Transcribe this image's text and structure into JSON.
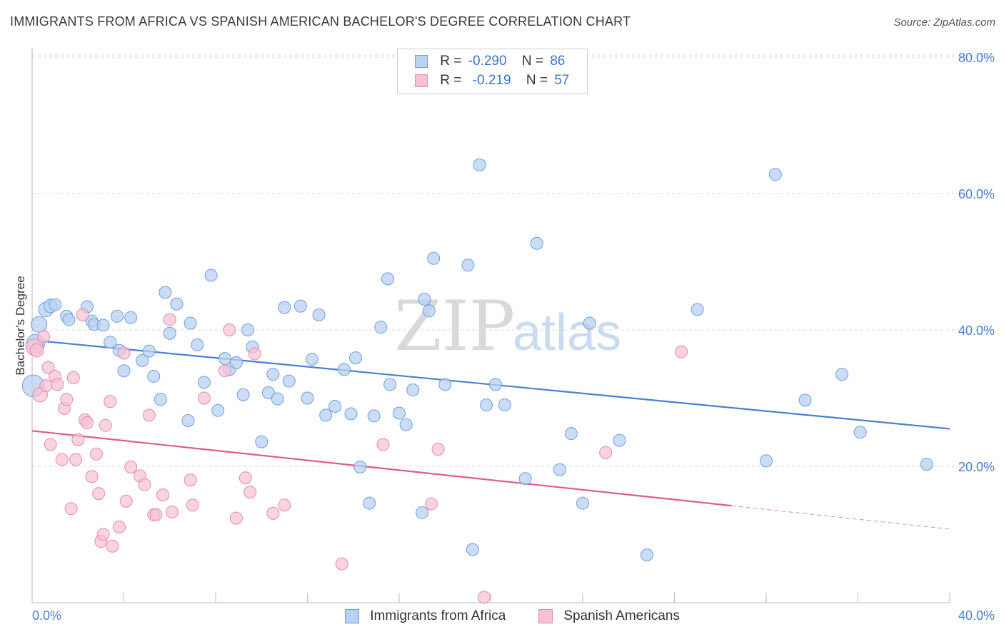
{
  "title": "IMMIGRANTS FROM AFRICA VS SPANISH AMERICAN BACHELOR'S DEGREE CORRELATION CHART",
  "source": "Source: ZipAtlas.com",
  "watermark": {
    "zip": "ZIP",
    "atlas": "atlas"
  },
  "legend": {
    "r_label": "R =",
    "n_label": "N =",
    "items": [
      {
        "name": "Immigrants from Africa",
        "r": "-0.290",
        "n": "86",
        "color": "#b9d2f2",
        "edge": "#6f9fe0"
      },
      {
        "name": "Spanish Americans",
        "r": "-0.219",
        "n": "57",
        "color": "#f6c2d3",
        "edge": "#e58aa9"
      }
    ]
  },
  "chart_data": {
    "type": "scatter",
    "title": "IMMIGRANTS FROM AFRICA VS SPANISH AMERICAN BACHELOR'S DEGREE CORRELATION CHART",
    "xlabel": "",
    "ylabel": "Bachelor's Degree",
    "xlim": [
      0,
      40
    ],
    "ylim": [
      0,
      80
    ],
    "x_tick_labels": [
      "0.0%",
      "40.0%"
    ],
    "y_ticks": [
      20,
      40,
      60,
      80
    ],
    "y_tick_labels": [
      "20.0%",
      "40.0%",
      "60.0%",
      "80.0%"
    ],
    "grid": true,
    "series": [
      {
        "name": "Immigrants from Africa",
        "color": "#4a7fd4",
        "trend": {
          "x": [
            0,
            40
          ],
          "y": [
            38.5,
            25.5
          ],
          "solid_to": 40
        },
        "points": [
          [
            0.05,
            31.8,
            1.8
          ],
          [
            0.15,
            38.0,
            1.5
          ],
          [
            0.3,
            40.8,
            1.3
          ],
          [
            0.6,
            43.0,
            1.2
          ],
          [
            0.8,
            43.5,
            1.1
          ],
          [
            1.0,
            43.7,
            1.0
          ],
          [
            1.5,
            42.0,
            1.0
          ],
          [
            1.6,
            41.5,
            1
          ],
          [
            2.4,
            43.4,
            1
          ],
          [
            2.6,
            41.3,
            1
          ],
          [
            2.7,
            40.8,
            1
          ],
          [
            3.1,
            40.7,
            1
          ],
          [
            3.4,
            38.2,
            1
          ],
          [
            3.7,
            42.0,
            1
          ],
          [
            3.8,
            37.0,
            1
          ],
          [
            4.0,
            34.0,
            1
          ],
          [
            4.3,
            41.8,
            1
          ],
          [
            4.8,
            35.5,
            1
          ],
          [
            5.1,
            36.9,
            1
          ],
          [
            5.3,
            33.2,
            1
          ],
          [
            5.6,
            29.8,
            1
          ],
          [
            5.8,
            45.5,
            1
          ],
          [
            6.0,
            39.5,
            1
          ],
          [
            6.3,
            43.8,
            1
          ],
          [
            6.8,
            26.7,
            1
          ],
          [
            6.9,
            41.0,
            1
          ],
          [
            7.2,
            37.8,
            1
          ],
          [
            7.5,
            32.3,
            1
          ],
          [
            7.8,
            48.0,
            1
          ],
          [
            8.1,
            28.2,
            1
          ],
          [
            8.4,
            35.8,
            1
          ],
          [
            8.6,
            34.2,
            1
          ],
          [
            8.9,
            35.2,
            1
          ],
          [
            9.2,
            30.5,
            1
          ],
          [
            9.4,
            40.0,
            1
          ],
          [
            9.6,
            37.5,
            1
          ],
          [
            10.0,
            23.6,
            1
          ],
          [
            10.3,
            30.8,
            1
          ],
          [
            10.5,
            33.5,
            1
          ],
          [
            10.7,
            29.9,
            1
          ],
          [
            11.0,
            43.3,
            1
          ],
          [
            11.2,
            32.5,
            1
          ],
          [
            11.7,
            43.5,
            1
          ],
          [
            12.0,
            30.0,
            1
          ],
          [
            12.2,
            35.7,
            1
          ],
          [
            12.5,
            42.2,
            1
          ],
          [
            12.8,
            27.5,
            1
          ],
          [
            13.2,
            28.8,
            1
          ],
          [
            13.6,
            34.2,
            1
          ],
          [
            13.9,
            27.7,
            1
          ],
          [
            14.1,
            35.9,
            1
          ],
          [
            14.3,
            19.9,
            1
          ],
          [
            14.7,
            14.6,
            1
          ],
          [
            14.9,
            27.4,
            1
          ],
          [
            15.2,
            40.4,
            1
          ],
          [
            15.5,
            47.5,
            1
          ],
          [
            15.6,
            32.0,
            1
          ],
          [
            16.0,
            27.8,
            1
          ],
          [
            16.3,
            26.1,
            1
          ],
          [
            16.6,
            31.2,
            1
          ],
          [
            17.0,
            13.2,
            1
          ],
          [
            17.1,
            44.5,
            1
          ],
          [
            17.3,
            42.8,
            1
          ],
          [
            17.5,
            50.5,
            1
          ],
          [
            18.0,
            32.0,
            1
          ],
          [
            19.0,
            49.5,
            1
          ],
          [
            19.2,
            7.8,
            1
          ],
          [
            19.5,
            64.2,
            1
          ],
          [
            19.8,
            29.0,
            1
          ],
          [
            20.2,
            32.0,
            1
          ],
          [
            20.6,
            29.0,
            1
          ],
          [
            21.5,
            18.2,
            1
          ],
          [
            22.0,
            52.7,
            1
          ],
          [
            23.0,
            19.5,
            1
          ],
          [
            23.5,
            24.8,
            1
          ],
          [
            24.0,
            14.6,
            1
          ],
          [
            24.3,
            41.0,
            1
          ],
          [
            25.6,
            23.8,
            1
          ],
          [
            26.8,
            7.0,
            1
          ],
          [
            29.0,
            43.0,
            1
          ],
          [
            32.0,
            20.8,
            1
          ],
          [
            32.4,
            62.8,
            1
          ],
          [
            33.7,
            29.7,
            1
          ],
          [
            35.3,
            33.5,
            1
          ],
          [
            36.1,
            25.0,
            1
          ],
          [
            39.0,
            20.3,
            1
          ]
        ]
      },
      {
        "name": "Spanish Americans",
        "color": "#e05a8a",
        "trend": {
          "x": [
            0,
            40
          ],
          "y": [
            25.2,
            10.8
          ],
          "solid_to": 30.5
        },
        "points": [
          [
            0.1,
            37.5,
            1.4
          ],
          [
            0.2,
            37.0,
            1.1
          ],
          [
            0.35,
            30.5,
            1.2
          ],
          [
            0.5,
            39.0,
            1
          ],
          [
            0.6,
            31.8,
            1
          ],
          [
            0.7,
            34.5,
            1
          ],
          [
            0.8,
            23.2,
            1
          ],
          [
            1.0,
            33.2,
            1
          ],
          [
            1.1,
            32.0,
            1
          ],
          [
            1.3,
            21.0,
            1
          ],
          [
            1.4,
            28.5,
            1
          ],
          [
            1.5,
            29.8,
            1
          ],
          [
            1.7,
            13.8,
            1
          ],
          [
            1.8,
            33.0,
            1
          ],
          [
            1.9,
            21.0,
            1
          ],
          [
            2.0,
            23.9,
            1
          ],
          [
            2.2,
            42.2,
            1
          ],
          [
            2.3,
            26.8,
            1
          ],
          [
            2.4,
            26.4,
            1
          ],
          [
            2.6,
            18.5,
            1
          ],
          [
            2.8,
            21.8,
            1
          ],
          [
            2.9,
            16.0,
            1
          ],
          [
            3.0,
            9.0,
            1
          ],
          [
            3.1,
            10.0,
            1
          ],
          [
            3.2,
            26.0,
            1
          ],
          [
            3.4,
            29.5,
            1
          ],
          [
            3.5,
            8.3,
            1
          ],
          [
            3.8,
            11.1,
            1
          ],
          [
            4.0,
            36.6,
            1
          ],
          [
            4.1,
            14.9,
            1
          ],
          [
            4.3,
            19.9,
            1
          ],
          [
            4.7,
            18.6,
            1
          ],
          [
            4.9,
            17.3,
            1
          ],
          [
            5.1,
            27.5,
            1
          ],
          [
            5.3,
            12.9,
            1
          ],
          [
            5.4,
            12.9,
            1
          ],
          [
            5.7,
            15.8,
            1
          ],
          [
            6.0,
            41.5,
            1
          ],
          [
            6.1,
            13.3,
            1
          ],
          [
            6.9,
            18.0,
            1
          ],
          [
            7.0,
            14.3,
            1
          ],
          [
            7.5,
            30.0,
            1
          ],
          [
            8.4,
            34.0,
            1
          ],
          [
            8.6,
            40.0,
            1
          ],
          [
            8.9,
            12.4,
            1
          ],
          [
            9.3,
            18.3,
            1
          ],
          [
            9.5,
            16.2,
            1
          ],
          [
            9.7,
            36.5,
            1
          ],
          [
            10.5,
            13.1,
            1
          ],
          [
            11.0,
            14.3,
            1
          ],
          [
            13.5,
            5.7,
            1
          ],
          [
            15.3,
            23.2,
            1
          ],
          [
            17.4,
            14.5,
            1
          ],
          [
            17.7,
            22.5,
            1
          ],
          [
            19.7,
            0.8,
            1
          ],
          [
            25.0,
            22.0,
            1
          ],
          [
            28.3,
            36.8,
            1
          ]
        ]
      }
    ]
  }
}
